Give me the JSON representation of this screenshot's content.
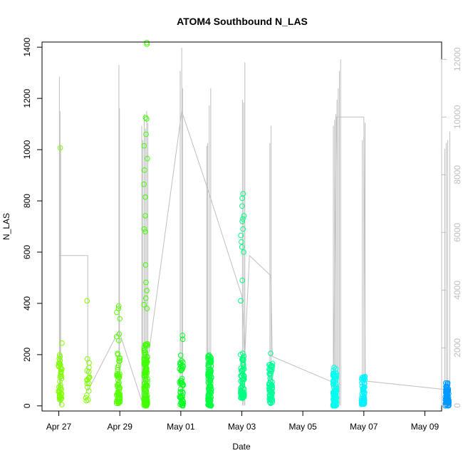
{
  "chart_data": {
    "type": "scatter",
    "title": "ATOM4 Southbound N_LAS",
    "xlabel": "Date",
    "ylabel": "N_LAS",
    "x_tick_labels": [
      "Apr 27",
      "Apr 29",
      "May 01",
      "May 03",
      "May 05",
      "May 07",
      "May 09"
    ],
    "x_ticks_days": [
      0,
      2,
      4,
      6,
      8,
      10,
      12
    ],
    "xlim_days": [
      -0.55,
      12.55
    ],
    "ylim": [
      -20,
      1420
    ],
    "y_ticks": [
      0,
      200,
      400,
      600,
      800,
      1000,
      1200,
      1400
    ],
    "y2_ticks": [
      0,
      2000,
      4000,
      6000,
      8000,
      10000,
      12000
    ],
    "y2lim": [
      -190,
      12600
    ],
    "colors": {
      "axis": "#000000",
      "secondary": "#bfbfbf",
      "trend_line": "#bfbfbf"
    },
    "secondary_series": {
      "name": "secondary (right axis)",
      "spikes": [
        {
          "day": 0.02,
          "top": 11400
        },
        {
          "day": 0.04,
          "top": 10200
        },
        {
          "day": 0.06,
          "top": 9000
        },
        {
          "day": 1.97,
          "top": 11800
        },
        {
          "day": 1.99,
          "top": 10300
        },
        {
          "day": 2.72,
          "top": 9700
        },
        {
          "day": 2.75,
          "top": 9200
        },
        {
          "day": 2.8,
          "top": 10100
        },
        {
          "day": 2.84,
          "top": 9600
        },
        {
          "day": 2.88,
          "top": 10200
        },
        {
          "day": 2.92,
          "top": 9800
        },
        {
          "day": 3.98,
          "top": 11600
        },
        {
          "day": 4.03,
          "top": 12400
        },
        {
          "day": 4.06,
          "top": 11000
        },
        {
          "day": 4.85,
          "top": 9000
        },
        {
          "day": 4.88,
          "top": 9100
        },
        {
          "day": 4.93,
          "top": 10400
        },
        {
          "day": 4.98,
          "top": 11000
        },
        {
          "day": 6.02,
          "top": 10600
        },
        {
          "day": 6.06,
          "top": 10500
        },
        {
          "day": 6.1,
          "top": 11900
        },
        {
          "day": 6.92,
          "top": 9100
        },
        {
          "day": 6.96,
          "top": 9700
        },
        {
          "day": 9.0,
          "top": 9700
        },
        {
          "day": 9.04,
          "top": 9900
        },
        {
          "day": 9.08,
          "top": 10100
        },
        {
          "day": 9.12,
          "top": 10600
        },
        {
          "day": 9.16,
          "top": 11000
        },
        {
          "day": 9.2,
          "top": 11600
        },
        {
          "day": 9.24,
          "top": 12000
        },
        {
          "day": 9.95,
          "top": 9200
        },
        {
          "day": 10.0,
          "top": 9300
        },
        {
          "day": 10.04,
          "top": 9800
        },
        {
          "day": 12.65,
          "top": 8900
        },
        {
          "day": 12.7,
          "top": 9100
        },
        {
          "day": 12.75,
          "top": 9200
        },
        {
          "day": 12.82,
          "top": 9500
        }
      ],
      "trend": [
        [
          0.0,
          5200
        ],
        [
          0.95,
          5200
        ],
        [
          0.95,
          500
        ],
        [
          1.97,
          2600
        ],
        [
          2.72,
          150
        ],
        [
          2.9,
          1400
        ],
        [
          4.03,
          10200
        ],
        [
          4.85,
          7600
        ],
        [
          6.0,
          3800
        ],
        [
          6.1,
          1800
        ],
        [
          6.25,
          5200
        ],
        [
          6.95,
          4500
        ],
        [
          7.0,
          1700
        ],
        [
          9.0,
          800
        ],
        [
          9.1,
          10000
        ],
        [
          10.0,
          10000
        ],
        [
          10.05,
          850
        ],
        [
          12.7,
          550
        ]
      ]
    },
    "series": [
      {
        "name": "N_LAS",
        "clusters": [
          {
            "day": 0.05,
            "color": "#80ff00",
            "count": 40,
            "lo": 20,
            "hi": 200,
            "extra": [
              1007,
              245,
              185,
              160,
              5,
              25
            ]
          },
          {
            "day": 0.95,
            "color": "#80ff00",
            "count": 18,
            "lo": 20,
            "hi": 185,
            "extra": [
              410
            ]
          },
          {
            "day": 1.95,
            "color": "#55ff00",
            "count": 55,
            "lo": 10,
            "hi": 210,
            "extra": [
              390,
              380,
              365,
              340,
              280,
              270,
              255
            ]
          },
          {
            "day": 2.85,
            "color": "#40ff00",
            "count": 120,
            "lo": 0,
            "hi": 245,
            "extra": [
              1418,
              1412,
              1125,
              1120,
              1060,
              1015,
              965,
              920,
              865,
              815,
              742,
              690,
              680,
              550,
              482,
              450,
              420,
              395,
              380
            ]
          },
          {
            "day": 4.02,
            "color": "#00ff20",
            "count": 50,
            "lo": 0,
            "hi": 205,
            "extra": [
              275,
              260
            ]
          },
          {
            "day": 4.95,
            "color": "#00ff40",
            "count": 110,
            "lo": 0,
            "hi": 205,
            "extra": [
              155
            ]
          },
          {
            "day": 6.02,
            "color": "#00ff80",
            "count": 70,
            "lo": 30,
            "hi": 200,
            "extra": [
              828,
              810,
              780,
              742,
              730,
              720,
              690,
              665,
              640,
              620,
              600,
              490,
              410,
              205,
              200
            ]
          },
          {
            "day": 6.95,
            "color": "#00ff99",
            "count": 60,
            "lo": 10,
            "hi": 180,
            "extra": [
              205
            ]
          },
          {
            "day": 9.05,
            "color": "#00ffee",
            "count": 95,
            "lo": 0,
            "hi": 135,
            "extra": [
              150,
              145,
              140
            ]
          },
          {
            "day": 9.98,
            "color": "#00f2ff",
            "count": 55,
            "lo": 5,
            "hi": 115,
            "extra": []
          },
          {
            "day": 12.73,
            "color": "#0099ff",
            "count": 65,
            "lo": 0,
            "hi": 90,
            "extra": []
          }
        ]
      }
    ]
  }
}
